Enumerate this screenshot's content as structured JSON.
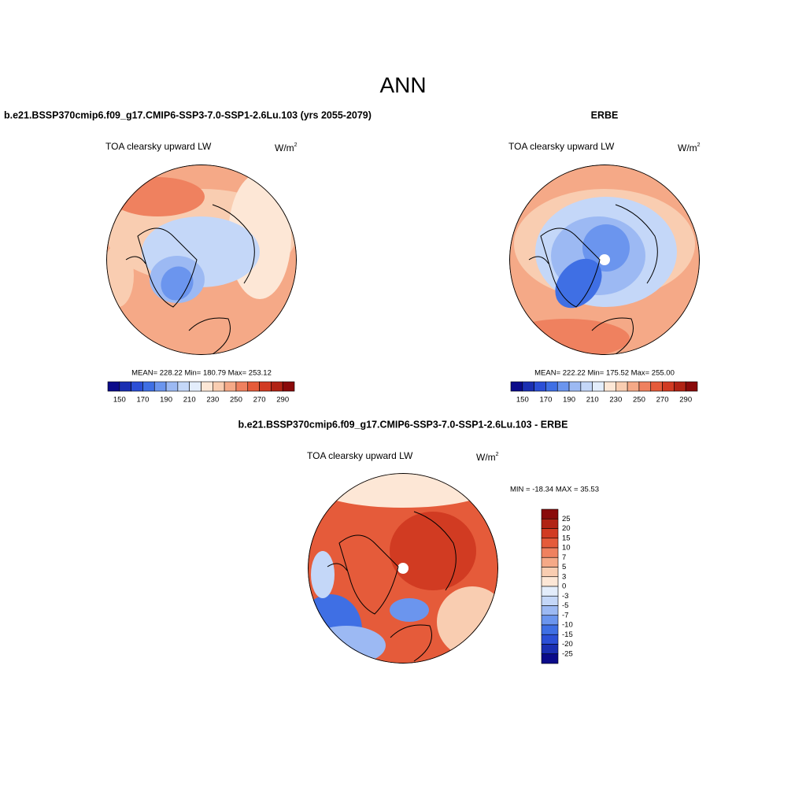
{
  "title": "ANN",
  "panels": [
    {
      "heading": "b.e21.BSSP370cmip6.f09_g17.CMIP6-SSP3-7.0-SSP1-2.6Lu.103 (yrs 2055-2079)",
      "variable": "TOA clearsky upward LW",
      "units": "W/m",
      "units_exponent": "2",
      "stats": "MEAN= 228.22  Min= 180.79  Max= 253.12",
      "colorbar_labels": [
        150,
        170,
        190,
        210,
        230,
        250,
        270,
        290
      ]
    },
    {
      "heading": "ERBE",
      "variable": "TOA clearsky upward LW",
      "units": "W/m",
      "units_exponent": "2",
      "stats": "MEAN= 222.22  Min= 175.52  Max= 255.00",
      "colorbar_labels": [
        150,
        170,
        190,
        210,
        230,
        250,
        270,
        290
      ]
    },
    {
      "heading": "b.e21.BSSP370cmip6.f09_g17.CMIP6-SSP3-7.0-SSP1-2.6Lu.103 - ERBE",
      "variable": "TOA clearsky upward LW",
      "units": "W/m",
      "units_exponent": "2",
      "stats": "MIN = -18.34 MAX =  35.53",
      "colorbar_labels": [
        25,
        20,
        15,
        10,
        7,
        5,
        3,
        0,
        -3,
        -5,
        -7,
        -10,
        -15,
        -20,
        -25
      ]
    }
  ],
  "colors": [
    "#0b0b8a",
    "#1a2fb2",
    "#2b4fd6",
    "#3f6fe4",
    "#6b95ee",
    "#9cb9f3",
    "#c4d7f8",
    "#e3edfb",
    "#fde7d6",
    "#f9cdb1",
    "#f5a987",
    "#ef815f",
    "#e55b3a",
    "#d13b22",
    "#b12314",
    "#8a0a0a"
  ]
}
